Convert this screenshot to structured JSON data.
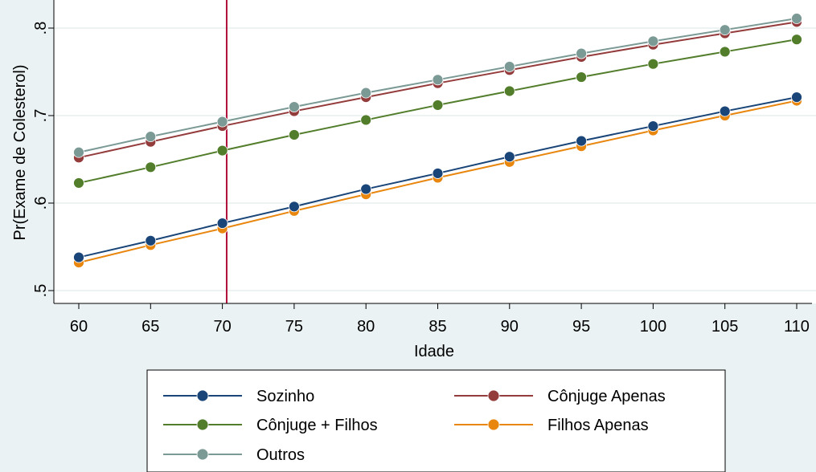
{
  "chart_data": {
    "type": "line",
    "title": "",
    "xlabel": "Idade",
    "ylabel": "Pr(Exame de Colesterol)",
    "x": [
      60,
      65,
      70,
      75,
      80,
      85,
      90,
      95,
      100,
      105,
      110
    ],
    "xlim": [
      60,
      110
    ],
    "ylim": [
      0.5,
      0.8
    ],
    "xticks": [
      "60",
      "65",
      "70",
      "75",
      "80",
      "85",
      "90",
      "95",
      "100",
      "105",
      "110"
    ],
    "yticks": [
      {
        "value": 0.5,
        "label": ".5"
      },
      {
        "value": 0.6,
        "label": ".6"
      },
      {
        "value": 0.7,
        "label": ".7"
      },
      {
        "value": 0.8,
        "label": ".8"
      }
    ],
    "reference_line_x": 70.3,
    "reference_line_color": "#b0103a",
    "grid": true,
    "legend_position": "bottom",
    "series": [
      {
        "name": "Sozinho",
        "color": "#1a4578",
        "values": [
          0.538,
          0.557,
          0.577,
          0.596,
          0.616,
          0.634,
          0.653,
          0.671,
          0.688,
          0.705,
          0.721
        ]
      },
      {
        "name": "Cônjuge Apenas",
        "color": "#943b3c",
        "values": [
          0.652,
          0.67,
          0.688,
          0.705,
          0.721,
          0.737,
          0.752,
          0.767,
          0.781,
          0.794,
          0.807
        ]
      },
      {
        "name": "Cônjuge + Filhos",
        "color": "#527d2b",
        "values": [
          0.623,
          0.641,
          0.66,
          0.678,
          0.695,
          0.712,
          0.728,
          0.744,
          0.759,
          0.773,
          0.787
        ]
      },
      {
        "name": "Filhos Apenas",
        "color": "#e8860e",
        "values": [
          0.532,
          0.552,
          0.571,
          0.591,
          0.61,
          0.629,
          0.647,
          0.665,
          0.683,
          0.7,
          0.717
        ]
      },
      {
        "name": "Outros",
        "color": "#7b9a95",
        "values": [
          0.658,
          0.676,
          0.693,
          0.71,
          0.726,
          0.741,
          0.756,
          0.771,
          0.785,
          0.798,
          0.811
        ]
      }
    ]
  }
}
